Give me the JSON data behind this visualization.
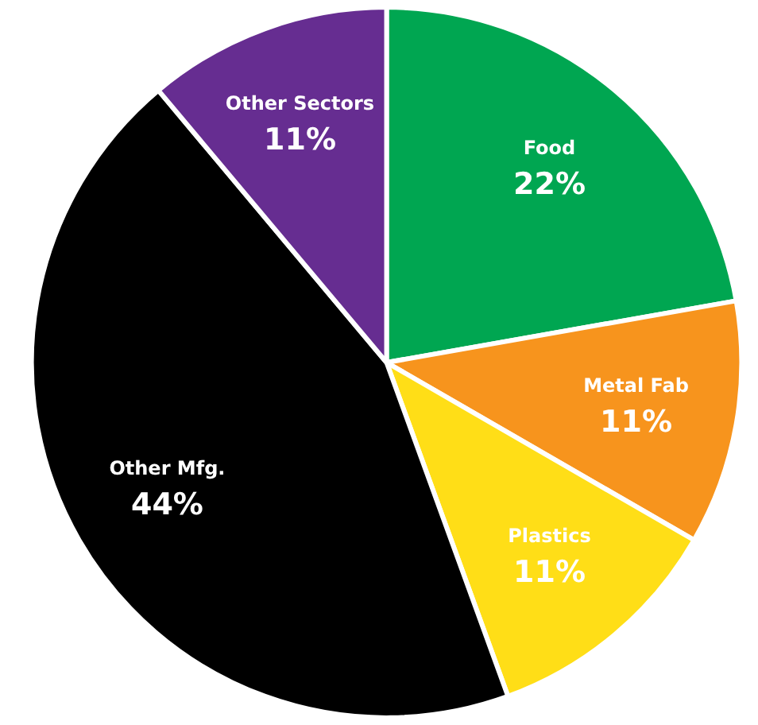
{
  "chart_data": {
    "type": "pie",
    "categories": [
      "Food",
      "Metal Fab",
      "Plastics",
      "Other Mfg.",
      "Other Sectors"
    ],
    "values": [
      22,
      11,
      11,
      44,
      11
    ],
    "value_labels": [
      "22%",
      "11%",
      "11%",
      "44%",
      "11%"
    ],
    "colors": [
      "#00a651",
      "#f7941d",
      "#ffde17",
      "#000000",
      "#662d91"
    ],
    "legend": false
  }
}
